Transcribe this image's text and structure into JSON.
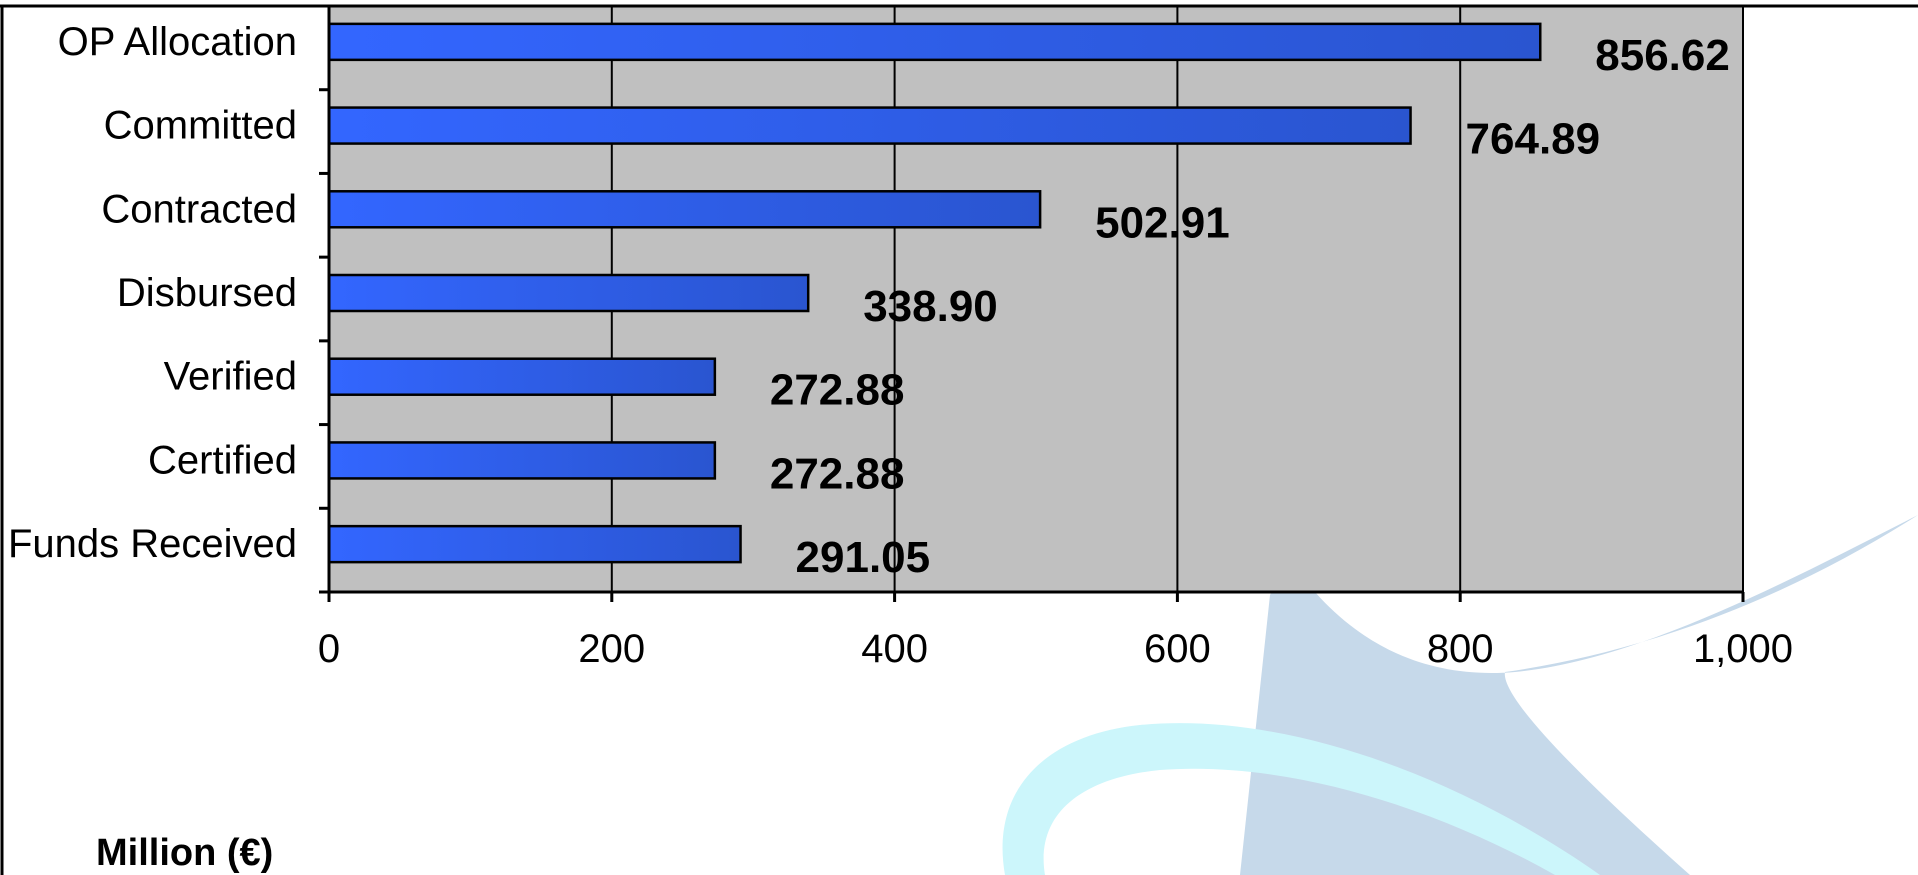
{
  "chart_data": {
    "type": "bar",
    "orientation": "horizontal",
    "categories": [
      "OP Allocation",
      "Committed",
      "Contracted",
      "Disbursed",
      "Verified",
      "Certified",
      "Funds Received"
    ],
    "values": [
      856.62,
      764.89,
      502.91,
      338.9,
      272.88,
      272.88,
      291.05
    ],
    "data_labels": [
      "856.62",
      "764.89",
      "502.91",
      "338.90",
      "272.88",
      "272.88",
      "291.05"
    ],
    "xlim": [
      0,
      1000
    ],
    "x_ticks": [
      0,
      200,
      400,
      600,
      800,
      1000
    ],
    "x_tick_labels": [
      "0",
      "200",
      "400",
      "600",
      "800",
      "1,000"
    ],
    "unit_label": "Million (€)",
    "grid": true,
    "legend": "none",
    "colors": {
      "bar_start": "#3366ff",
      "bar_end": "#2a55d0",
      "plot_background": "#c0c0c0",
      "gridline": "#000000",
      "watermark_blue": "#c6d9ea",
      "watermark_cyan": "#ccf6fb"
    }
  }
}
